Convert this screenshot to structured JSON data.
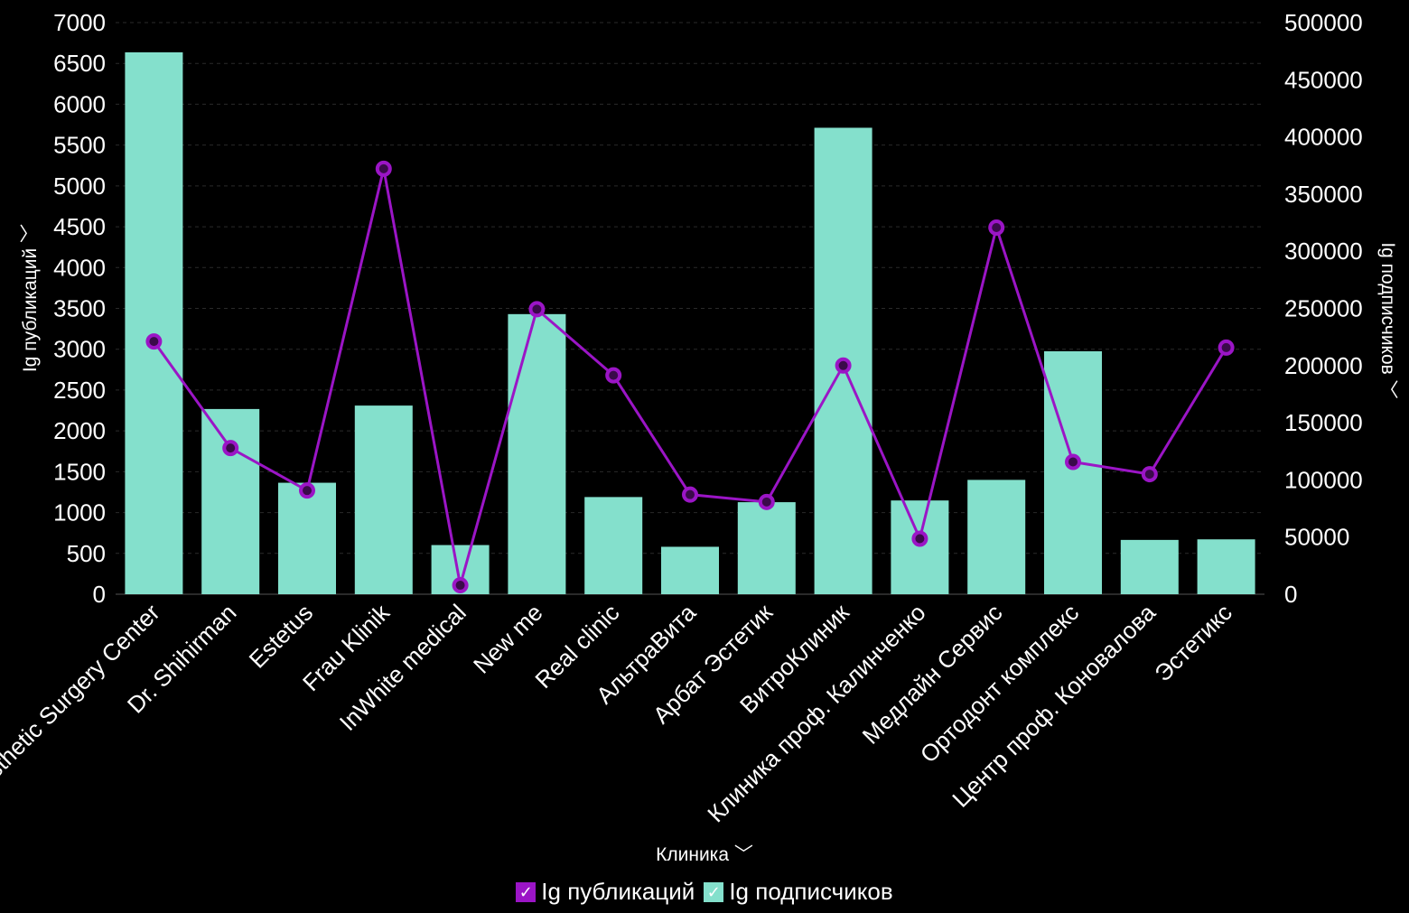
{
  "chart_data": {
    "type": "bar+line",
    "categories": [
      "Aesthetic Surgery Center",
      "Dr. Shihirman",
      "Estetus",
      "Frau Klinik",
      "InWhite medical",
      "New me",
      "Real clinic",
      "АльтраВита",
      "Арбат Эстетик",
      "ВитроКлиник",
      "Клиника проф. Калинченко",
      "Медлайн Сервис",
      "Ортодонт комплекс",
      "Центр проф. Коновалова",
      "Эстетикс"
    ],
    "series": [
      {
        "name": "Ig публикаций",
        "type": "line",
        "axis": "left",
        "color": "#9b15c6",
        "values": [
          3095,
          1790,
          1270,
          5210,
          110,
          3490,
          2680,
          1220,
          1130,
          2800,
          680,
          4490,
          1620,
          1470,
          3020
        ]
      },
      {
        "name": "Ig подписчиков",
        "type": "bar",
        "axis": "right",
        "color": "#84e0cc",
        "values": [
          474000,
          162000,
          97500,
          165000,
          43000,
          245000,
          85000,
          41500,
          80500,
          408000,
          82000,
          100000,
          212500,
          47500,
          48000
        ]
      }
    ],
    "xlabel": "Клиника",
    "ylabel_left": "Ig публикаций",
    "ylabel_right": "Ig подписчиков",
    "ylim_left": [
      0,
      7000
    ],
    "ylim_right": [
      0,
      500000
    ],
    "yticks_left": [
      0,
      500,
      1000,
      1500,
      2000,
      2500,
      3000,
      3500,
      4000,
      4500,
      5000,
      5500,
      6000,
      6500,
      7000
    ],
    "yticks_right": [
      0,
      50000,
      100000,
      150000,
      200000,
      250000,
      300000,
      350000,
      400000,
      450000,
      500000
    ],
    "legend_position": "bottom-center",
    "grid": true
  },
  "legend": {
    "items": [
      {
        "label": "Ig публикаций",
        "color": "#9b15c6",
        "check": "✓"
      },
      {
        "label": "Ig подписчиков",
        "color": "#84e0cc",
        "check": "✓"
      }
    ]
  },
  "axis_titles": {
    "x": "Клиника",
    "y_left": "Ig публикаций",
    "y_right": "Ig подписчиков",
    "chevron_icon": "chevron-down-icon"
  }
}
